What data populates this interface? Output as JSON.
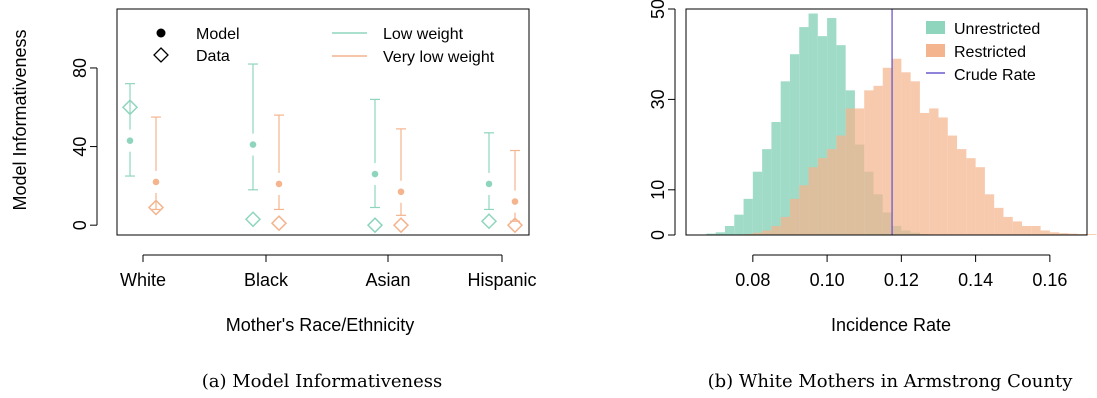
{
  "chart_data": [
    {
      "type": "scatter",
      "id": "a",
      "ylabel": "Model Informativeness",
      "xlabel": "Mother's Race/Ethnicity",
      "caption": "(a) Model Informativeness",
      "ylim": [
        -5,
        110
      ],
      "yticks": [
        0,
        40,
        80
      ],
      "categories": [
        "White",
        "Black",
        "Asian",
        "Hispanic"
      ],
      "grid": false,
      "legend": {
        "placement": "top",
        "markers": [
          {
            "label": "Model",
            "shape": "dot"
          },
          {
            "label": "Data",
            "shape": "diamond"
          }
        ],
        "lines": [
          {
            "label": "Low weight",
            "color": "#8fd5be"
          },
          {
            "label": "Very low weight",
            "color": "#f4b48e"
          }
        ]
      },
      "series": [
        {
          "name": "Low weight",
          "color": "#8fd5be",
          "model": [
            43,
            41,
            26,
            21
          ],
          "lower": [
            25,
            18,
            9,
            8
          ],
          "upper": [
            72,
            82,
            64,
            47
          ],
          "data": [
            60,
            3,
            0,
            2
          ]
        },
        {
          "name": "Very low weight",
          "color": "#f4b48e",
          "model": [
            22,
            21,
            17,
            12
          ],
          "lower": [
            8,
            8,
            5,
            2
          ],
          "upper": [
            55,
            56,
            49,
            38
          ],
          "data": [
            9,
            1,
            0,
            0
          ]
        }
      ]
    },
    {
      "type": "histogram",
      "id": "b",
      "xlabel": "Incidence Rate",
      "ylabel": "",
      "caption": "(b) White Mothers in Armstrong County",
      "xlim": [
        0.062,
        0.17
      ],
      "ylim": [
        0,
        50
      ],
      "xticks": [
        0.08,
        0.1,
        0.12,
        0.14,
        0.16
      ],
      "xtick_labels": [
        "0.08",
        "0.10",
        "0.12",
        "0.14",
        "0.16"
      ],
      "yticks": [
        0,
        10,
        30,
        50
      ],
      "ytick_labels": [
        "0",
        "10",
        "30",
        "50"
      ],
      "bin_width": 0.0025,
      "grid": false,
      "legend": {
        "placement": "top-right"
      },
      "series": [
        {
          "name": "Unrestricted",
          "color": "#8fd5be",
          "bin_start": 0.0675,
          "counts": [
            0.3,
            0.6,
            2,
            4.5,
            8,
            14,
            19,
            25,
            34,
            40,
            46,
            49,
            44,
            48,
            42,
            32,
            20,
            14,
            9,
            5,
            2,
            1,
            0.5,
            0.2
          ]
        },
        {
          "name": "Restricted",
          "color": "#f4b48e",
          "bin_start": 0.0675,
          "counts": [
            0,
            0,
            0,
            0,
            0.2,
            0.5,
            1,
            2,
            4,
            8,
            11,
            15,
            17,
            19,
            22,
            28,
            28,
            32,
            33,
            37,
            39,
            36,
            34,
            27,
            28,
            26,
            22,
            19,
            17,
            15,
            9,
            6,
            4,
            3,
            2,
            2,
            1,
            0.6,
            0.4,
            0.3,
            0.2,
            0.2
          ]
        }
      ],
      "vline": {
        "name": "Crude Rate",
        "x": 0.1175,
        "color": "#6a5acd"
      }
    }
  ]
}
